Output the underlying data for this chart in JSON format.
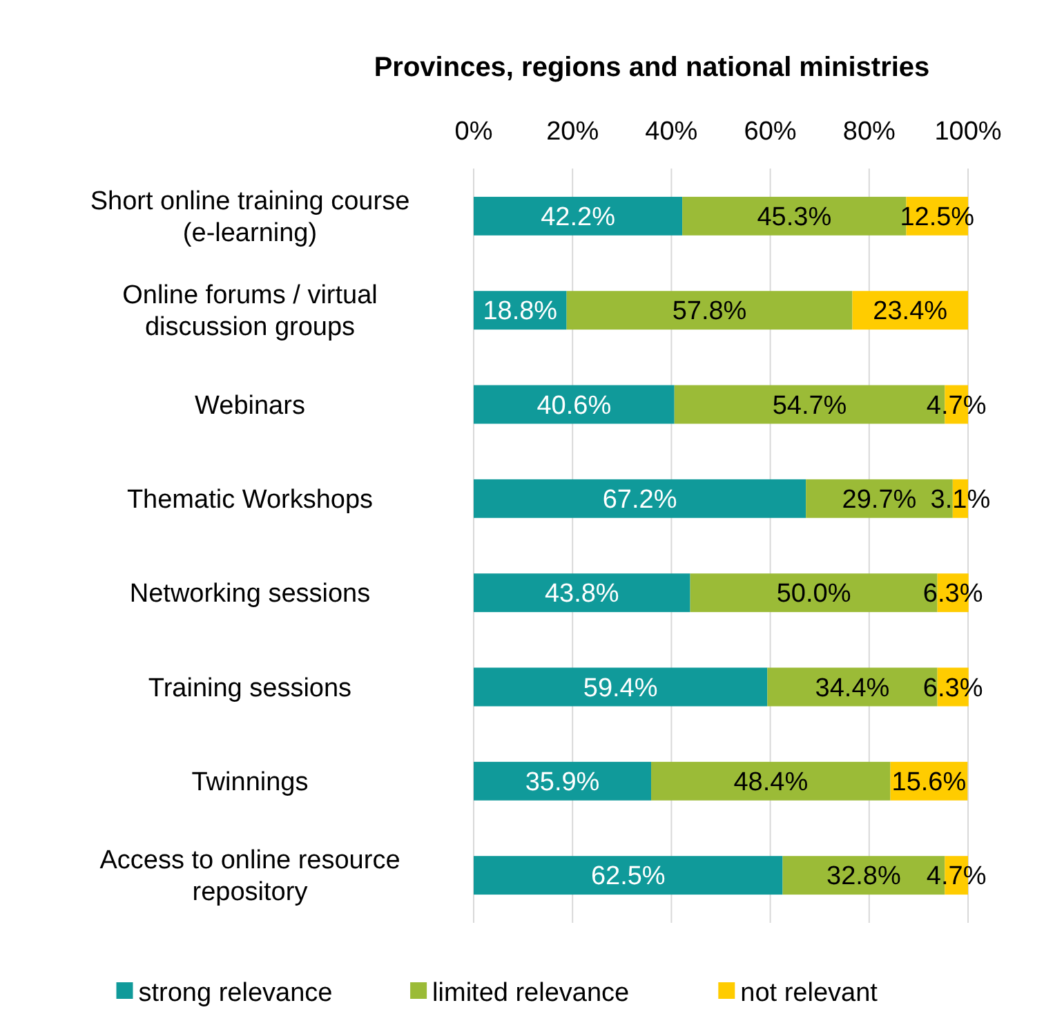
{
  "chart_data": {
    "type": "bar",
    "orientation": "horizontal",
    "stacked": true,
    "title": "Provinces, regions and national ministries",
    "categories": [
      "Short online training course (e-learning)",
      "Online forums / virtual discussion groups",
      "Webinars",
      "Thematic Workshops",
      "Networking sessions",
      "Training sessions",
      "Twinnings",
      "Access to online resource repository"
    ],
    "series": [
      {
        "name": "strong relevance",
        "color": "#109a9a",
        "values": [
          42.2,
          18.8,
          40.6,
          67.2,
          43.8,
          59.4,
          35.9,
          62.5
        ],
        "value_labels": [
          "42.2%",
          "18.8%",
          "40.6%",
          "67.2%",
          "43.8%",
          "59.4%",
          "35.9%",
          "62.5%"
        ]
      },
      {
        "name": "limited relevance",
        "color": "#9bbb37",
        "values": [
          45.3,
          57.8,
          54.7,
          29.7,
          50.0,
          34.4,
          48.4,
          32.8
        ],
        "value_labels": [
          "45.3%",
          "57.8%",
          "54.7%",
          "29.7%",
          "50.0%",
          "34.4%",
          "48.4%",
          "32.8%"
        ]
      },
      {
        "name": "not relevant",
        "color": "#ffcc00",
        "values": [
          12.5,
          23.4,
          4.7,
          3.1,
          6.3,
          6.3,
          15.6,
          4.7
        ],
        "value_labels": [
          "12.5%",
          "23.4%",
          "4.7%",
          "3.1%",
          "6.3%",
          "6.3%",
          "15.6%",
          "4.7%"
        ]
      }
    ],
    "xlim": [
      0,
      100
    ],
    "xticks": [
      {
        "value": 0,
        "label": "0%"
      },
      {
        "value": 20,
        "label": "20%"
      },
      {
        "value": 40,
        "label": "40%"
      },
      {
        "value": 60,
        "label": "60%"
      },
      {
        "value": 80,
        "label": "80%"
      },
      {
        "value": 100,
        "label": "100%"
      }
    ],
    "grid": "x",
    "legend": "bottom"
  }
}
